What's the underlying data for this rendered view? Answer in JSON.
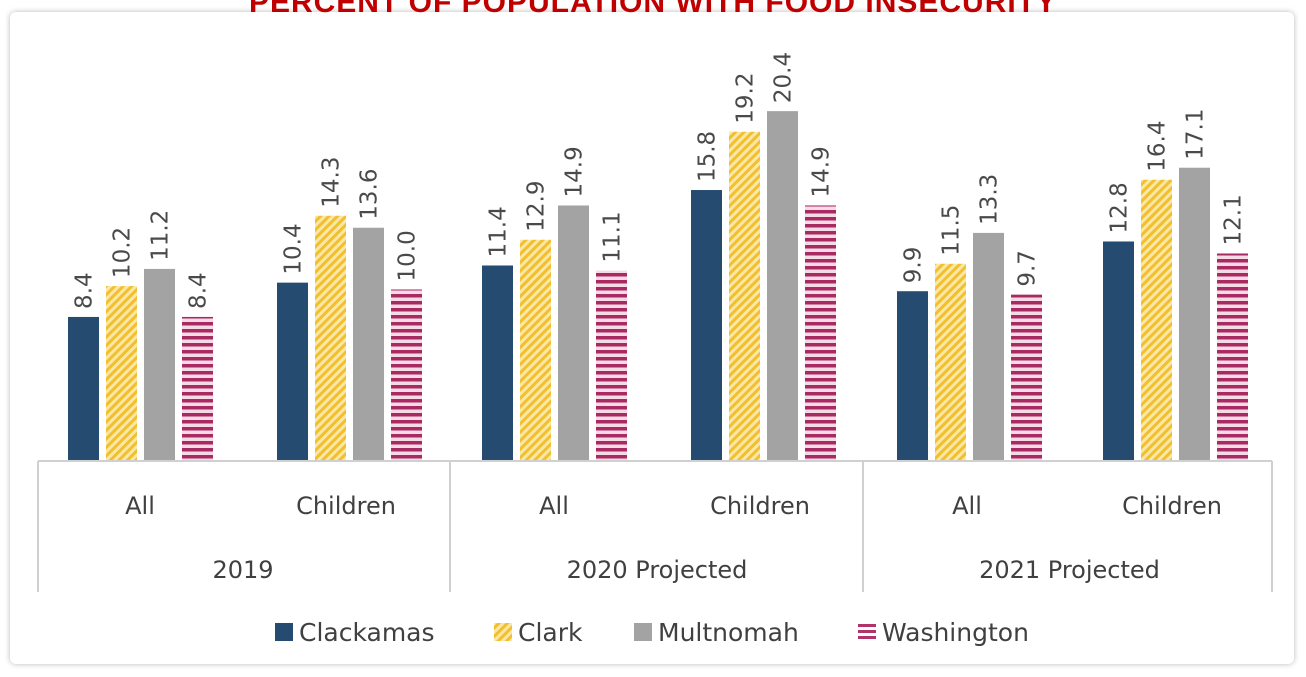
{
  "chart_data": {
    "type": "bar",
    "title": "PERCENT OF POPULATION WITH FOOD INSECURITY",
    "groups": [
      {
        "label": "2019",
        "categories": [
          "All",
          "Children"
        ]
      },
      {
        "label": "2020 Projected",
        "categories": [
          "All",
          "Children"
        ]
      },
      {
        "label": "2021 Projected",
        "categories": [
          "All",
          "Children"
        ]
      }
    ],
    "series": [
      {
        "name": "Clackamas",
        "color": "#264b70",
        "pattern": "solid",
        "values": [
          8.4,
          10.4,
          11.4,
          15.8,
          9.9,
          12.8
        ],
        "labels": [
          "8.4",
          "10.4",
          "11.4",
          "15.8",
          "9.9",
          "12.8"
        ]
      },
      {
        "name": "Clark",
        "color": "#f5c842",
        "pattern": "diagonal-hatch",
        "values": [
          10.2,
          14.3,
          12.9,
          19.2,
          11.5,
          16.4
        ],
        "labels": [
          "10.2",
          "14.3",
          "12.9",
          "19.2",
          "11.5",
          "16.4"
        ]
      },
      {
        "name": "Multnomah",
        "color": "#a3a3a3",
        "pattern": "solid",
        "values": [
          11.2,
          13.6,
          14.9,
          20.4,
          13.3,
          17.1
        ],
        "labels": [
          "11.2",
          "13.6",
          "14.9",
          "20.4",
          "13.3",
          "17.1"
        ]
      },
      {
        "name": "Washington",
        "color": "#b0336a",
        "pattern": "horizontal-stripes",
        "values": [
          8.4,
          10.0,
          11.1,
          14.9,
          9.7,
          12.1
        ],
        "labels": [
          "8.4",
          "10.0",
          "11.1",
          "14.9",
          "9.7",
          "12.1"
        ]
      }
    ],
    "legend_position": "bottom",
    "grid": false
  }
}
